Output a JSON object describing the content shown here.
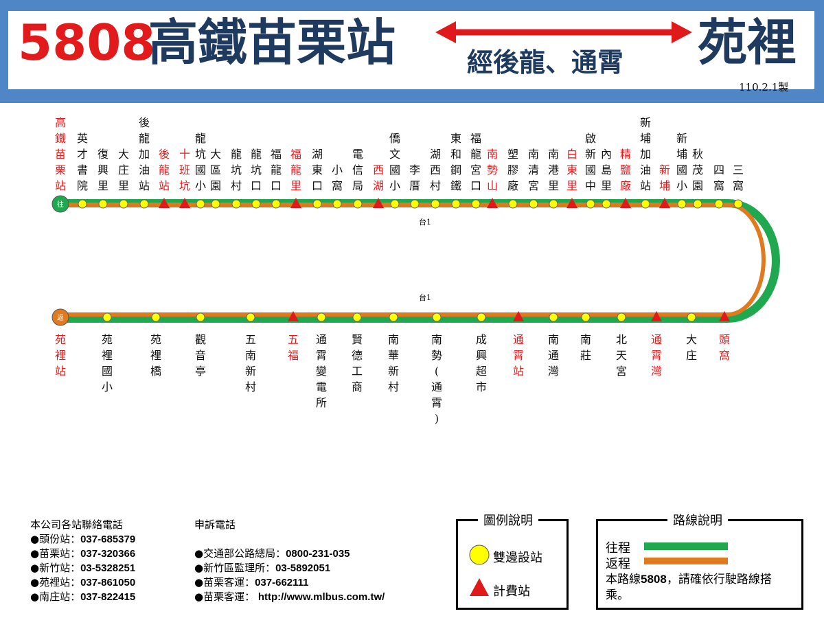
{
  "header": {
    "route_number": "5808",
    "from": "高鐵苗栗站",
    "to": "苑裡",
    "via": "經後龍、通霄",
    "date": "110.2.1製"
  },
  "road_labels": {
    "upper": "台1",
    "lower": "台1"
  },
  "endpoint_badges": {
    "outbound": "往",
    "return": "返"
  },
  "outbound_stops": [
    {
      "name": "高鐵苗栗站",
      "type": "terminal",
      "highlight": true
    },
    {
      "name": "英才書院",
      "type": "both",
      "highlight": false
    },
    {
      "name": "復興里",
      "type": "both",
      "highlight": false
    },
    {
      "name": "大庄里",
      "type": "both",
      "highlight": false
    },
    {
      "name": "後龍加油站",
      "type": "both",
      "highlight": false
    },
    {
      "name": "後龍站",
      "type": "fare",
      "highlight": true
    },
    {
      "name": "十班坑",
      "type": "fare",
      "highlight": true
    },
    {
      "name": "龍坑國小",
      "type": "both",
      "highlight": false
    },
    {
      "name": "大區園",
      "type": "both",
      "highlight": false
    },
    {
      "name": "龍坑村",
      "type": "both",
      "highlight": false
    },
    {
      "name": "龍坑口",
      "type": "both",
      "highlight": false
    },
    {
      "name": "福龍口",
      "type": "both",
      "highlight": false
    },
    {
      "name": "福龍里",
      "type": "fare",
      "highlight": true
    },
    {
      "name": "湖東口",
      "type": "both",
      "highlight": false
    },
    {
      "name": "小窩",
      "type": "both",
      "highlight": false
    },
    {
      "name": "電信局",
      "type": "both",
      "highlight": false
    },
    {
      "name": "西湖",
      "type": "fare",
      "highlight": true
    },
    {
      "name": "僑文國小",
      "type": "both",
      "highlight": false
    },
    {
      "name": "李厝",
      "type": "both",
      "highlight": false
    },
    {
      "name": "湖西村",
      "type": "both",
      "highlight": false
    },
    {
      "name": "東和鋼鐵",
      "type": "both",
      "highlight": false
    },
    {
      "name": "福龍宮口",
      "type": "both",
      "highlight": false
    },
    {
      "name": "南勢山",
      "type": "fare",
      "highlight": true
    },
    {
      "name": "塑膠廠",
      "type": "both",
      "highlight": false
    },
    {
      "name": "南清宮",
      "type": "both",
      "highlight": false
    },
    {
      "name": "南港里",
      "type": "both",
      "highlight": false
    },
    {
      "name": "白東里",
      "type": "fare",
      "highlight": true
    },
    {
      "name": "啟新國中",
      "type": "both",
      "highlight": false
    },
    {
      "name": "內島里",
      "type": "both",
      "highlight": false
    },
    {
      "name": "精鹽廠",
      "type": "fare",
      "highlight": true
    },
    {
      "name": "新埔加油站",
      "type": "both",
      "highlight": false
    },
    {
      "name": "新埔",
      "type": "fare",
      "highlight": true
    },
    {
      "name": "新埔國小",
      "type": "both",
      "highlight": false
    },
    {
      "name": "秋茂園",
      "type": "both",
      "highlight": false
    },
    {
      "name": "四窩",
      "type": "both",
      "highlight": false
    },
    {
      "name": "三窩",
      "type": "both",
      "highlight": false
    }
  ],
  "return_stops": [
    {
      "name": "苑裡站",
      "type": "terminal",
      "highlight": true
    },
    {
      "name": "苑裡國小",
      "type": "both",
      "highlight": false
    },
    {
      "name": "苑裡橋",
      "type": "both",
      "highlight": false
    },
    {
      "name": "觀音亭",
      "type": "both",
      "highlight": false
    },
    {
      "name": "五南新村",
      "type": "both",
      "highlight": false
    },
    {
      "name": "五福",
      "type": "fare",
      "highlight": true
    },
    {
      "name": "通霄變電所",
      "type": "both",
      "highlight": false
    },
    {
      "name": "賢德工商",
      "type": "both",
      "highlight": false
    },
    {
      "name": "南華新村",
      "type": "both",
      "highlight": false
    },
    {
      "name": "南勢(通霄)",
      "type": "both",
      "highlight": false
    },
    {
      "name": "成興超市",
      "type": "both",
      "highlight": false
    },
    {
      "name": "通霄站",
      "type": "fare",
      "highlight": true
    },
    {
      "name": "南通灣",
      "type": "both",
      "highlight": false
    },
    {
      "name": "南莊",
      "type": "both",
      "highlight": false
    },
    {
      "name": "北天宮",
      "type": "both",
      "highlight": false
    },
    {
      "name": "通霄灣",
      "type": "fare",
      "highlight": true
    },
    {
      "name": "大庄",
      "type": "both",
      "highlight": false
    },
    {
      "name": "頭窩",
      "type": "fare",
      "highlight": true
    }
  ],
  "colors": {
    "outbound_line": "#1fa84f",
    "return_line": "#e07a1f",
    "both_stop": "#ffff00",
    "fare_stop": "#e0191b",
    "highlight_text": "#e31a1c",
    "header_band": "#4f86c6"
  },
  "contacts": {
    "title": "本公司各站聯絡電話",
    "items": [
      {
        "label": "●頭份站：",
        "phone": "037-685379"
      },
      {
        "label": "●苗栗站：",
        "phone": "037-320366"
      },
      {
        "label": "●新竹站：",
        "phone": "03-5328251"
      },
      {
        "label": "●苑裡站：",
        "phone": "037-861050"
      },
      {
        "label": "●南庄站：",
        "phone": "037-822415"
      }
    ]
  },
  "complaints": {
    "title": "申訴電話",
    "items": [
      {
        "label": "●交通部公路總局：",
        "phone": "0800-231-035"
      },
      {
        "label": "●新竹區監理所：",
        "phone": "03-5892051"
      },
      {
        "label": "●苗栗客運：",
        "phone": "037-662111"
      },
      {
        "label": "●苗栗客運： ",
        "phone": "http://www.mlbus.com.tw/"
      }
    ]
  },
  "legend": {
    "title": "圖例說明",
    "both_label": "雙邊設站",
    "fare_label": "計費站"
  },
  "route_info": {
    "title": "路線說明",
    "outbound_label": "往程",
    "return_label": "返程",
    "note_prefix": "本路線",
    "note_route": "5808",
    "note_suffix": "，請確依行駛路線搭乘。"
  }
}
